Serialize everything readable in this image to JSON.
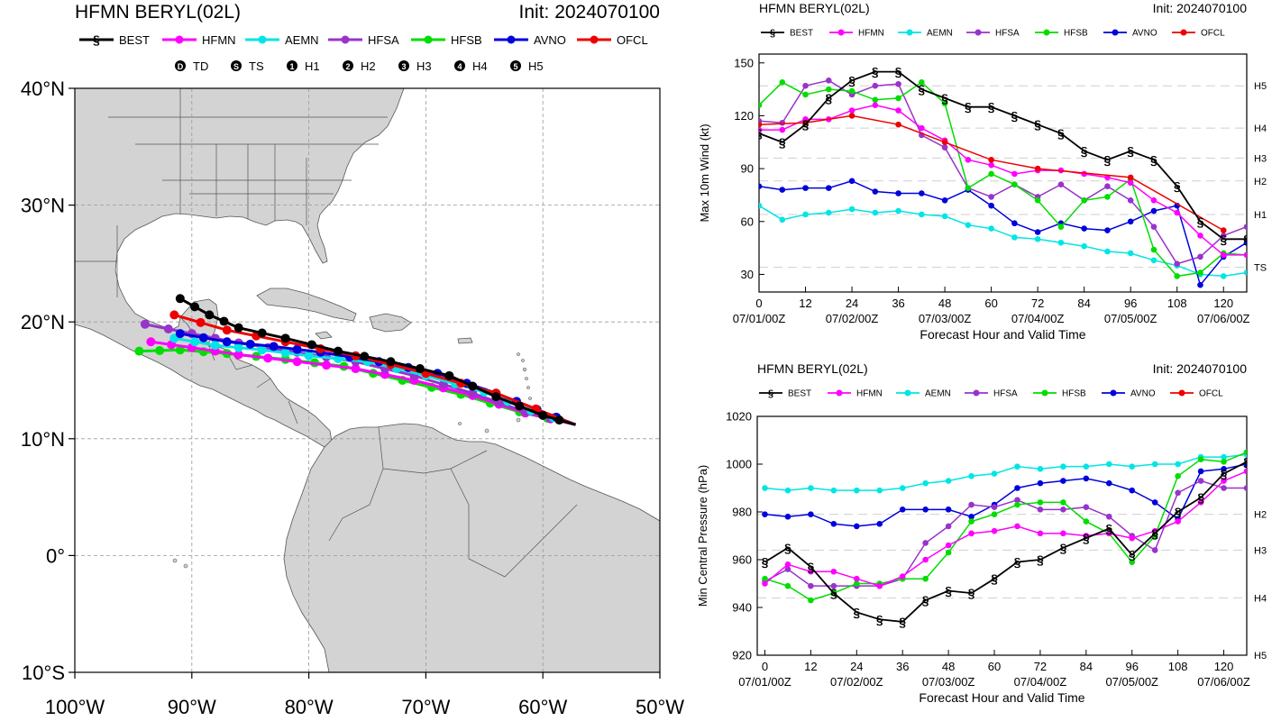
{
  "map": {
    "title": "HFMN BERYL(02L)",
    "init": "Init: 2024070100",
    "legend": [
      "BEST",
      "HFMN",
      "AEMN",
      "HFSA",
      "HFSB",
      "AVNO",
      "OFCL"
    ],
    "intensity_keys": [
      {
        "sym": "D",
        "label": "TD"
      },
      {
        "sym": "S",
        "label": "TS"
      },
      {
        "sym": "1",
        "label": "H1"
      },
      {
        "sym": "2",
        "label": "H2"
      },
      {
        "sym": "3",
        "label": "H3"
      },
      {
        "sym": "4",
        "label": "H4"
      },
      {
        "sym": "5",
        "label": "H5"
      }
    ],
    "lat_labels": [
      "40°N",
      "30°N",
      "20°N",
      "10°N",
      "0°",
      "10°S"
    ],
    "lon_labels": [
      "100°W",
      "90°W",
      "80°W",
      "70°W",
      "60°W",
      "50°W"
    ]
  },
  "colors": {
    "BEST": "#000000",
    "HFMN": "#ff00ff",
    "AEMN": "#00e5e5",
    "HFSA": "#9933cc",
    "HFSB": "#00dd00",
    "AVNO": "#0000dd",
    "OFCL": "#ee0000",
    "land": "#d3d3d3",
    "water": "#ffffff"
  },
  "chart_data": [
    {
      "type": "line",
      "title": "HFMN BERYL(02L)",
      "init": "Init: 2024070100",
      "xlabel": "Forecast Hour and Valid Time",
      "ylabel": "Max 10m Wind (kt)",
      "xlim": [
        0,
        126
      ],
      "ylim": [
        20,
        155
      ],
      "x_ticks": [
        0,
        12,
        24,
        36,
        48,
        60,
        72,
        84,
        96,
        108,
        120
      ],
      "y_ticks": [
        30,
        60,
        90,
        120,
        150
      ],
      "date_labels": [
        {
          "x": 0,
          "label": "07/01/00Z"
        },
        {
          "x": 24,
          "label": "07/02/00Z"
        },
        {
          "x": 48,
          "label": "07/03/00Z"
        },
        {
          "x": 72,
          "label": "07/04/00Z"
        },
        {
          "x": 96,
          "label": "07/05/00Z"
        },
        {
          "x": 120,
          "label": "07/06/00Z"
        }
      ],
      "ref_lines": [
        {
          "y": 137,
          "label": "H5"
        },
        {
          "y": 113,
          "label": "H4"
        },
        {
          "y": 96,
          "label": "H3"
        },
        {
          "y": 83,
          "label": "H2"
        },
        {
          "y": 64,
          "label": "H1"
        },
        {
          "y": 34,
          "label": "TS"
        }
      ],
      "legend": [
        "BEST",
        "HFMN",
        "AEMN",
        "HFSA",
        "HFSB",
        "AVNO",
        "OFCL"
      ],
      "series": [
        {
          "name": "BEST",
          "x": [
            0,
            6,
            12,
            18,
            24,
            30,
            36,
            42,
            48,
            54,
            60,
            66,
            72,
            78,
            84,
            90,
            96,
            102,
            108,
            114,
            120,
            126
          ],
          "y": [
            110,
            105,
            115,
            130,
            140,
            145,
            145,
            135,
            130,
            125,
            125,
            120,
            115,
            110,
            100,
            95,
            100,
            95,
            80,
            60,
            50,
            50
          ]
        },
        {
          "name": "HFMN",
          "x": [
            0,
            6,
            12,
            18,
            24,
            30,
            36,
            42,
            48,
            54,
            60,
            66,
            72,
            78,
            84,
            90,
            96,
            102,
            108,
            114,
            120,
            126
          ],
          "y": [
            112,
            112,
            118,
            118,
            123,
            126,
            123,
            113,
            106,
            95,
            92,
            87,
            89,
            89,
            87,
            85,
            82,
            72,
            65,
            52,
            41,
            41
          ]
        },
        {
          "name": "AEMN",
          "x": [
            0,
            6,
            12,
            18,
            24,
            30,
            36,
            42,
            48,
            54,
            60,
            66,
            72,
            78,
            84,
            90,
            96,
            102,
            108,
            114,
            120,
            126
          ],
          "y": [
            69,
            61,
            64,
            65,
            67,
            65,
            66,
            64,
            63,
            58,
            56,
            51,
            50,
            48,
            46,
            43,
            42,
            38,
            35,
            30,
            29,
            31
          ]
        },
        {
          "name": "HFSA",
          "x": [
            0,
            6,
            12,
            18,
            24,
            30,
            36,
            42,
            48,
            54,
            60,
            66,
            72,
            78,
            84,
            90,
            96,
            102,
            108,
            114,
            120,
            126
          ],
          "y": [
            117,
            116,
            137,
            140,
            132,
            137,
            138,
            109,
            102,
            79,
            74,
            81,
            74,
            81,
            72,
            80,
            72,
            57,
            36,
            40,
            52,
            57
          ]
        },
        {
          "name": "HFSB",
          "x": [
            0,
            6,
            12,
            18,
            24,
            30,
            36,
            42,
            48,
            54,
            60,
            66,
            72,
            78,
            84,
            90,
            96,
            102,
            108,
            114,
            120,
            126
          ],
          "y": [
            126,
            139,
            132,
            135,
            134,
            129,
            130,
            139,
            127,
            79,
            87,
            81,
            72,
            57,
            72,
            74,
            84,
            44,
            29,
            31,
            42,
            41
          ]
        },
        {
          "name": "AVNO",
          "x": [
            0,
            6,
            12,
            18,
            24,
            30,
            36,
            42,
            48,
            54,
            60,
            66,
            72,
            78,
            84,
            90,
            96,
            102,
            108,
            114,
            120,
            126
          ],
          "y": [
            80,
            78,
            79,
            79,
            83,
            77,
            76,
            76,
            72,
            78,
            69,
            59,
            54,
            59,
            56,
            55,
            60,
            66,
            69,
            24,
            40,
            48
          ]
        },
        {
          "name": "OFCL",
          "x": [
            0,
            12,
            24,
            36,
            48,
            60,
            72,
            96,
            120
          ],
          "y": [
            115,
            116,
            120,
            115,
            105,
            95,
            90,
            85,
            55
          ]
        }
      ]
    },
    {
      "type": "line",
      "title": "HFMN BERYL(02L)",
      "init": "Init: 2024070100",
      "xlabel": "Forecast Hour and Valid Time",
      "ylabel": "Min Central Pressure (hPa)",
      "xlim": [
        -2,
        126
      ],
      "ylim": [
        920,
        1020
      ],
      "x_ticks": [
        0,
        12,
        24,
        36,
        48,
        60,
        72,
        84,
        96,
        108,
        120
      ],
      "y_ticks": [
        920,
        940,
        960,
        980,
        1000,
        1020
      ],
      "date_labels": [
        {
          "x": 0,
          "label": "07/01/00Z"
        },
        {
          "x": 24,
          "label": "07/02/00Z"
        },
        {
          "x": 48,
          "label": "07/03/00Z"
        },
        {
          "x": 72,
          "label": "07/04/00Z"
        },
        {
          "x": 96,
          "label": "07/05/00Z"
        },
        {
          "x": 120,
          "label": "07/06/00Z"
        }
      ],
      "ref_lines": [
        {
          "y": 979,
          "label": "H2"
        },
        {
          "y": 964,
          "label": "H3"
        },
        {
          "y": 944,
          "label": "H4"
        },
        {
          "y": 920,
          "label": "H5"
        }
      ],
      "legend": [
        "BEST",
        "HFMN",
        "AEMN",
        "HFSA",
        "HFSB",
        "AVNO",
        "OFCL"
      ],
      "series": [
        {
          "name": "BEST",
          "x": [
            0,
            6,
            12,
            18,
            24,
            30,
            36,
            42,
            48,
            54,
            60,
            66,
            72,
            78,
            84,
            90,
            96,
            102,
            108,
            114,
            120,
            126
          ],
          "y": [
            959,
            965,
            957,
            946,
            938,
            935,
            934,
            943,
            947,
            946,
            952,
            959,
            960,
            965,
            969,
            973,
            962,
            971,
            980,
            986,
            996,
            1001
          ]
        },
        {
          "name": "HFMN",
          "x": [
            0,
            6,
            12,
            18,
            24,
            30,
            36,
            42,
            48,
            54,
            60,
            66,
            72,
            78,
            84,
            90,
            96,
            102,
            108,
            114,
            120,
            126
          ],
          "y": [
            950,
            958,
            955,
            955,
            952,
            949,
            953,
            960,
            966,
            971,
            972,
            974,
            971,
            971,
            970,
            971,
            969,
            972,
            976,
            984,
            993,
            997
          ]
        },
        {
          "name": "AEMN",
          "x": [
            0,
            6,
            12,
            18,
            24,
            30,
            36,
            42,
            48,
            54,
            60,
            66,
            72,
            78,
            84,
            90,
            96,
            102,
            108,
            114,
            120,
            126
          ],
          "y": [
            990,
            989,
            990,
            989,
            989,
            989,
            990,
            992,
            993,
            995,
            996,
            999,
            998,
            999,
            999,
            1000,
            999,
            1000,
            1000,
            1003,
            1003,
            1004
          ]
        },
        {
          "name": "HFSA",
          "x": [
            0,
            6,
            12,
            18,
            24,
            30,
            36,
            42,
            48,
            54,
            60,
            66,
            72,
            78,
            84,
            90,
            96,
            102,
            108,
            114,
            120,
            126
          ],
          "y": [
            951,
            956,
            949,
            949,
            949,
            949,
            952,
            967,
            974,
            983,
            982,
            985,
            981,
            981,
            982,
            978,
            970,
            964,
            988,
            993,
            990,
            990
          ]
        },
        {
          "name": "HFSB",
          "x": [
            0,
            6,
            12,
            18,
            24,
            30,
            36,
            42,
            48,
            54,
            60,
            66,
            72,
            78,
            84,
            90,
            96,
            102,
            108,
            114,
            120,
            126
          ],
          "y": [
            952,
            949,
            943,
            946,
            950,
            950,
            952,
            952,
            963,
            976,
            979,
            983,
            984,
            984,
            976,
            971,
            959,
            970,
            995,
            1002,
            1001,
            1005
          ]
        },
        {
          "name": "AVNO",
          "x": [
            0,
            6,
            12,
            18,
            24,
            30,
            36,
            42,
            48,
            54,
            60,
            66,
            72,
            78,
            84,
            90,
            96,
            102,
            108,
            114,
            120,
            126
          ],
          "y": [
            979,
            978,
            979,
            975,
            974,
            975,
            981,
            981,
            981,
            978,
            983,
            990,
            992,
            993,
            994,
            992,
            989,
            984,
            977,
            997,
            998,
            1000
          ]
        }
      ]
    }
  ]
}
